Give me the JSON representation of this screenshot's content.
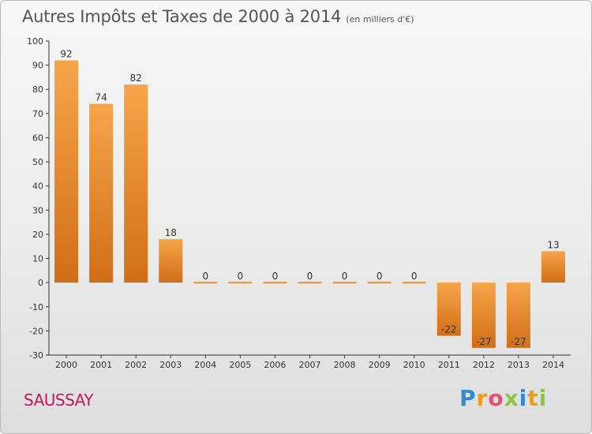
{
  "title": "Autres Impôts et Taxes de 2000 à 2014",
  "unit_note": "(en milliers d'€)",
  "town": "SAUSSAY",
  "brand": "Proxiti",
  "colors": {
    "bar_light": "#f7a54a",
    "bar_dark": "#d06e17",
    "axis": "#333333",
    "text": "#555555",
    "town": "#c2185b"
  },
  "chart_data": {
    "type": "bar",
    "title": "Autres Impôts et Taxes de 2000 à 2014",
    "subtitle": "(en milliers d'€)",
    "xlabel": "",
    "ylabel": "",
    "categories": [
      "2000",
      "2001",
      "2002",
      "2003",
      "2004",
      "2005",
      "2006",
      "2007",
      "2008",
      "2009",
      "2010",
      "2011",
      "2012",
      "2013",
      "2014"
    ],
    "values": [
      92,
      74,
      82,
      18,
      0,
      0,
      0,
      0,
      0,
      0,
      0,
      -22,
      -27,
      -27,
      13
    ],
    "ylim": [
      -30,
      100
    ],
    "yticks": [
      100,
      90,
      80,
      70,
      60,
      50,
      40,
      30,
      20,
      10,
      0,
      -10,
      -20,
      -30
    ],
    "grid": false,
    "legend": "none"
  }
}
